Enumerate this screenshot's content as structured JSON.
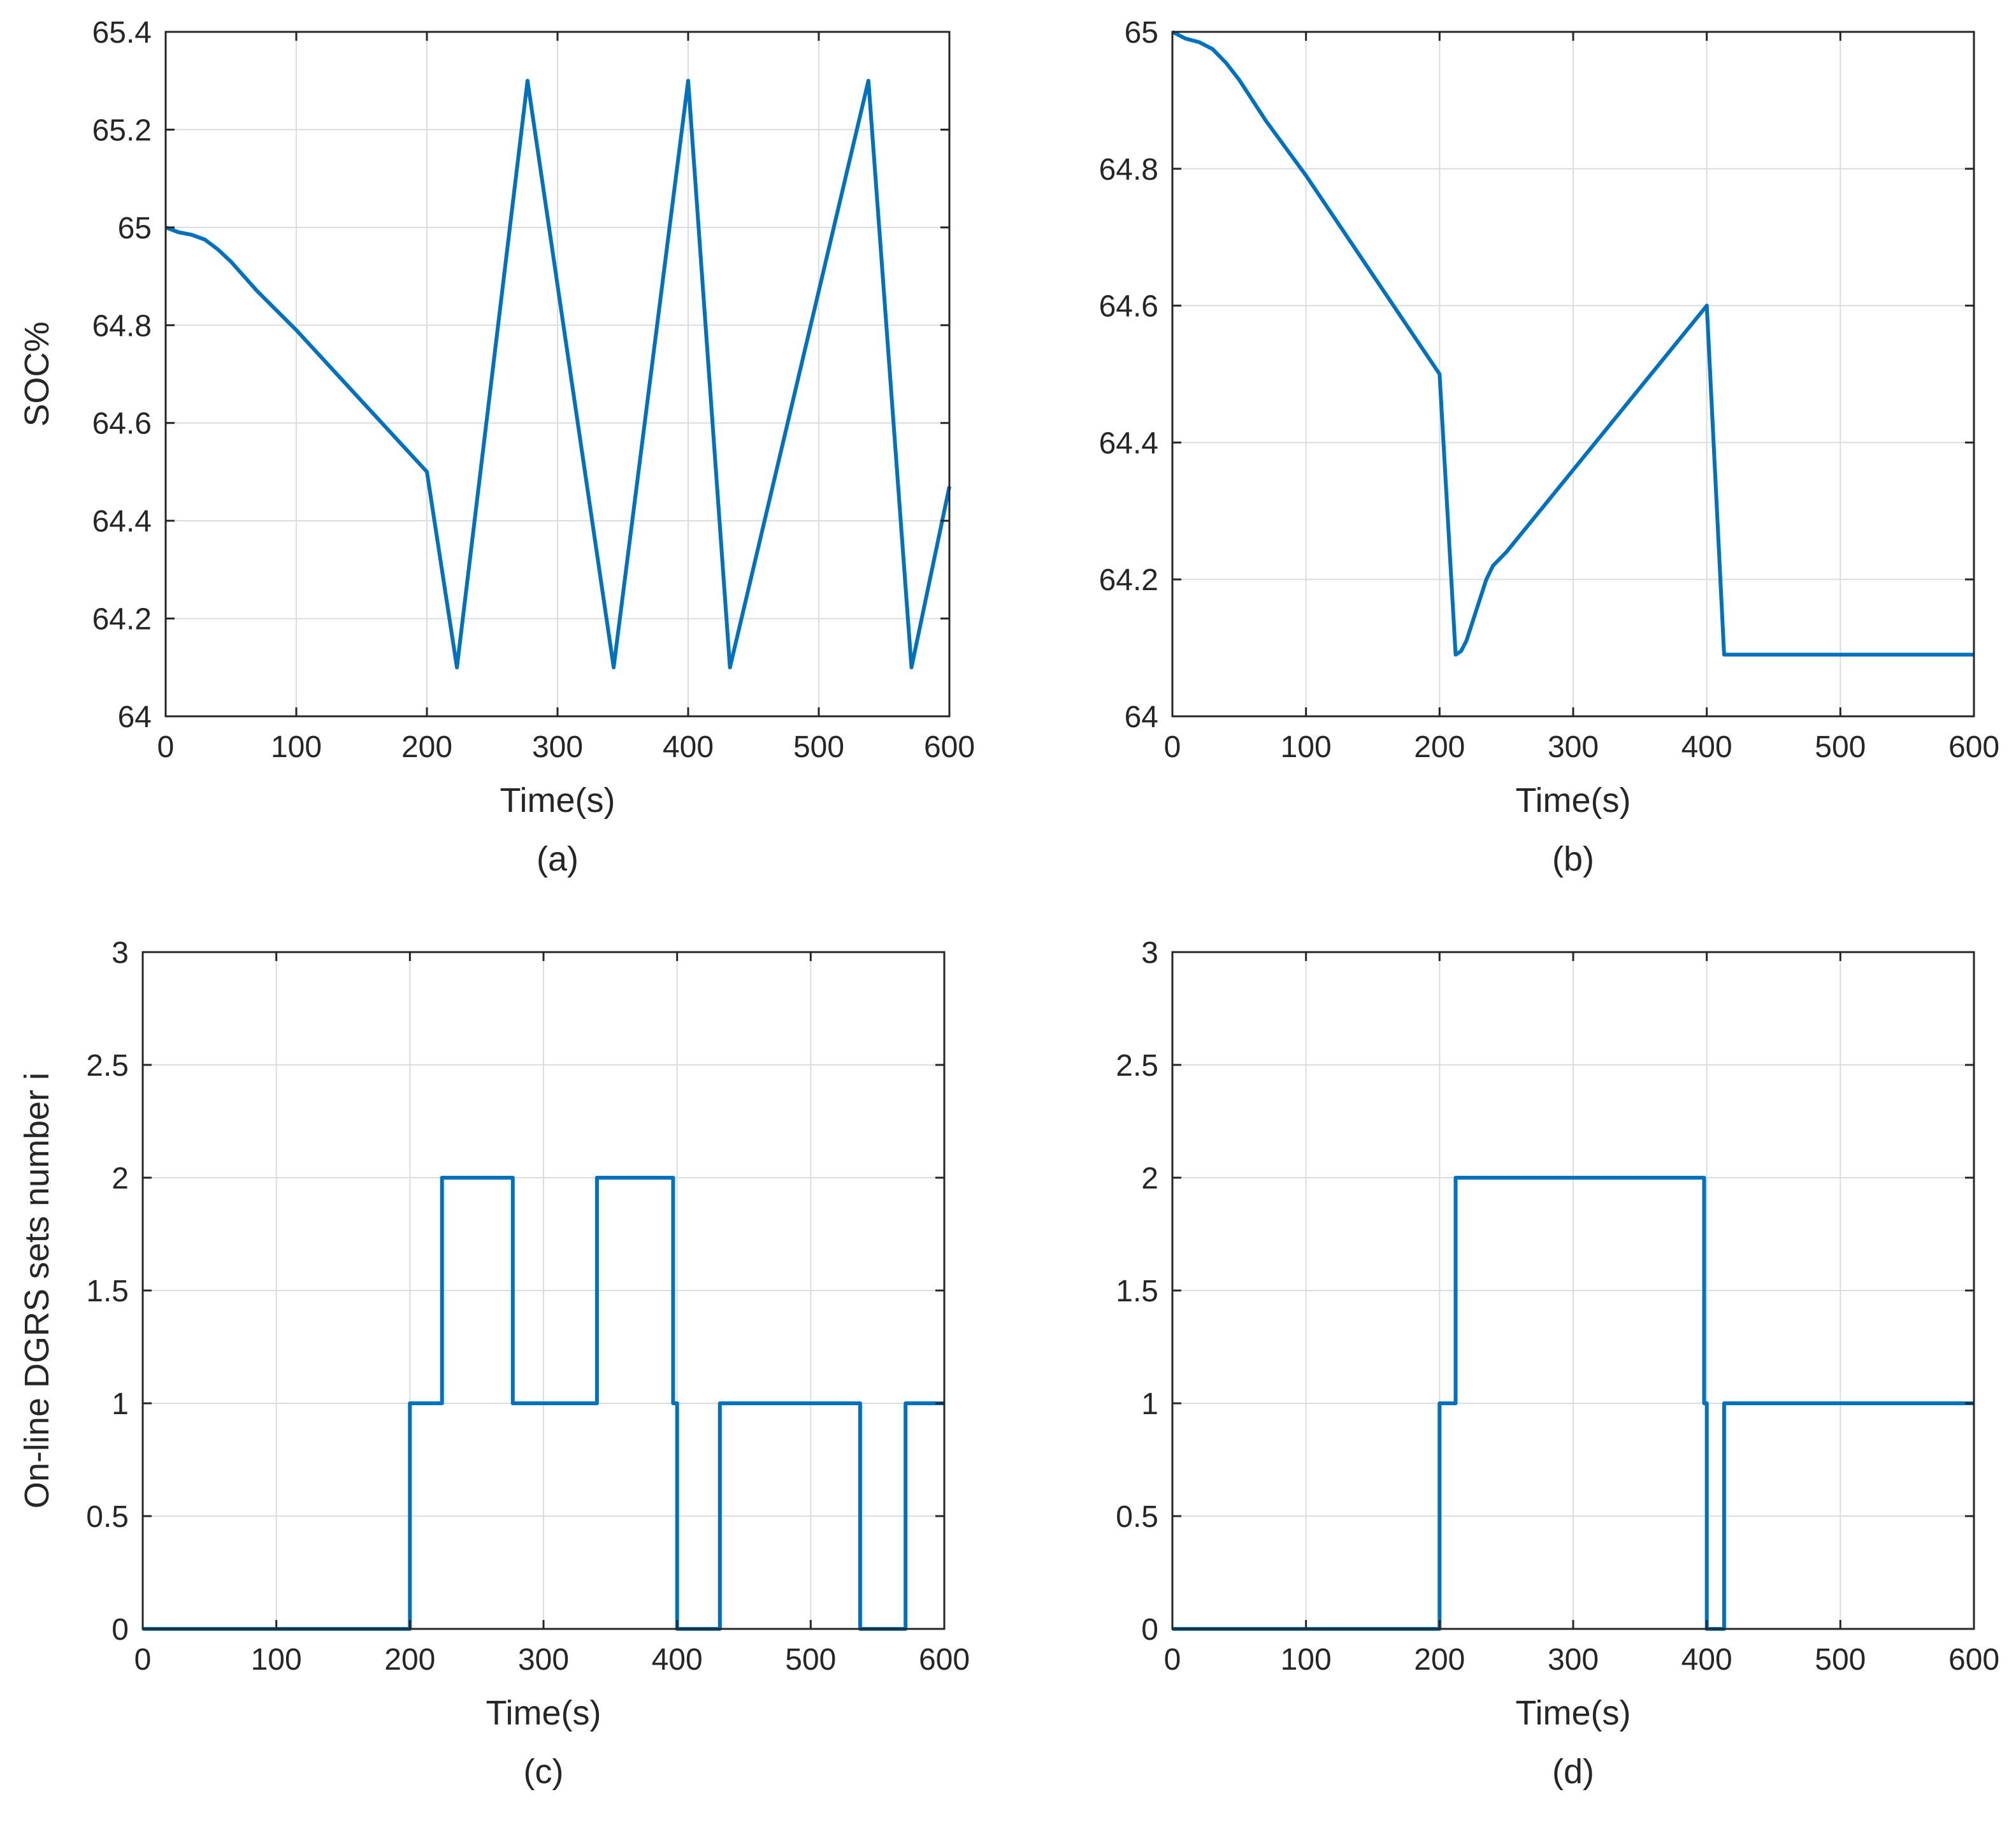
{
  "colors": {
    "line": "#0072BD",
    "grid": "#DCDCDC",
    "axis": "#262626",
    "background": "#FFFFFF"
  },
  "chart_data": [
    {
      "type": "line",
      "caption": "(a)",
      "xlabel": "Time(s)",
      "ylabel": "SOC%",
      "xlim": [
        0,
        600
      ],
      "ylim": [
        64,
        65.4
      ],
      "xticks": [
        0,
        100,
        200,
        300,
        400,
        500,
        600
      ],
      "yticks": [
        64,
        64.2,
        64.4,
        64.6,
        64.8,
        65,
        65.2,
        65.4
      ],
      "xtick_labels": [
        "0",
        "100",
        "200",
        "300",
        "400",
        "500",
        "600"
      ],
      "ytick_labels": [
        "64",
        "64.2",
        "64.4",
        "64.6",
        "64.8",
        "65",
        "65.2",
        "65.4"
      ],
      "grid": true,
      "series": [
        {
          "x": [
            0,
            10,
            20,
            30,
            40,
            50,
            70,
            100,
            150,
            200,
            223,
            277,
            343,
            400,
            432,
            538,
            571,
            600
          ],
          "y": [
            65,
            64.99,
            64.985,
            64.975,
            64.955,
            64.93,
            64.87,
            64.79,
            64.645,
            64.5,
            64.1,
            65.3,
            64.1,
            65.3,
            64.1,
            65.3,
            64.1,
            64.47
          ]
        }
      ]
    },
    {
      "type": "line",
      "caption": "(b)",
      "xlabel": "Time(s)",
      "ylabel": "",
      "xlim": [
        0,
        600
      ],
      "ylim": [
        64,
        65
      ],
      "xticks": [
        0,
        100,
        200,
        300,
        400,
        500,
        600
      ],
      "yticks": [
        64,
        64.2,
        64.4,
        64.6,
        64.8,
        65
      ],
      "xtick_labels": [
        "0",
        "100",
        "200",
        "300",
        "400",
        "500",
        "600"
      ],
      "ytick_labels": [
        "64",
        "64.2",
        "64.4",
        "64.6",
        "64.8",
        "65"
      ],
      "grid": true,
      "series": [
        {
          "x": [
            0,
            10,
            20,
            30,
            40,
            50,
            70,
            100,
            150,
            200,
            212,
            216,
            220,
            225,
            230,
            235,
            240,
            250,
            300,
            400,
            413,
            600
          ],
          "y": [
            65,
            64.99,
            64.985,
            64.975,
            64.955,
            64.93,
            64.87,
            64.79,
            64.645,
            64.5,
            64.09,
            64.095,
            64.11,
            64.14,
            64.17,
            64.2,
            64.22,
            64.24,
            64.36,
            64.6,
            64.09,
            64.09
          ]
        }
      ]
    },
    {
      "type": "line",
      "caption": "(c)",
      "xlabel": "Time(s)",
      "ylabel": "On-line DGRS sets number i",
      "xlim": [
        0,
        600
      ],
      "ylim": [
        0,
        3
      ],
      "xticks": [
        0,
        100,
        200,
        300,
        400,
        500,
        600
      ],
      "yticks": [
        0,
        0.5,
        1,
        1.5,
        2,
        2.5,
        3
      ],
      "xtick_labels": [
        "0",
        "100",
        "200",
        "300",
        "400",
        "500",
        "600"
      ],
      "ytick_labels": [
        "0",
        "0.5",
        "1",
        "1.5",
        "2",
        "2.5",
        "3"
      ],
      "grid": true,
      "series": [
        {
          "x": [
            0,
            200,
            200,
            224,
            224,
            277,
            277,
            340,
            340,
            397,
            397,
            400,
            400,
            432,
            432,
            537,
            537,
            571,
            571,
            600
          ],
          "y": [
            0,
            0,
            1,
            1,
            2,
            2,
            1,
            1,
            2,
            2,
            1,
            1,
            0,
            0,
            1,
            1,
            0,
            0,
            1,
            1
          ]
        }
      ]
    },
    {
      "type": "line",
      "caption": "(d)",
      "xlabel": "Time(s)",
      "ylabel": "",
      "xlim": [
        0,
        600
      ],
      "ylim": [
        0,
        3
      ],
      "xticks": [
        0,
        100,
        200,
        300,
        400,
        500,
        600
      ],
      "yticks": [
        0,
        0.5,
        1,
        1.5,
        2,
        2.5,
        3
      ],
      "xtick_labels": [
        "0",
        "100",
        "200",
        "300",
        "400",
        "500",
        "600"
      ],
      "ytick_labels": [
        "0",
        "0.5",
        "1",
        "1.5",
        "2",
        "2.5",
        "3"
      ],
      "grid": true,
      "series": [
        {
          "x": [
            0,
            200,
            200,
            212,
            212,
            398,
            398,
            400,
            400,
            413,
            413,
            600
          ],
          "y": [
            0,
            0,
            1,
            1,
            2,
            2,
            1,
            1,
            0,
            0,
            1,
            1
          ]
        }
      ]
    }
  ]
}
